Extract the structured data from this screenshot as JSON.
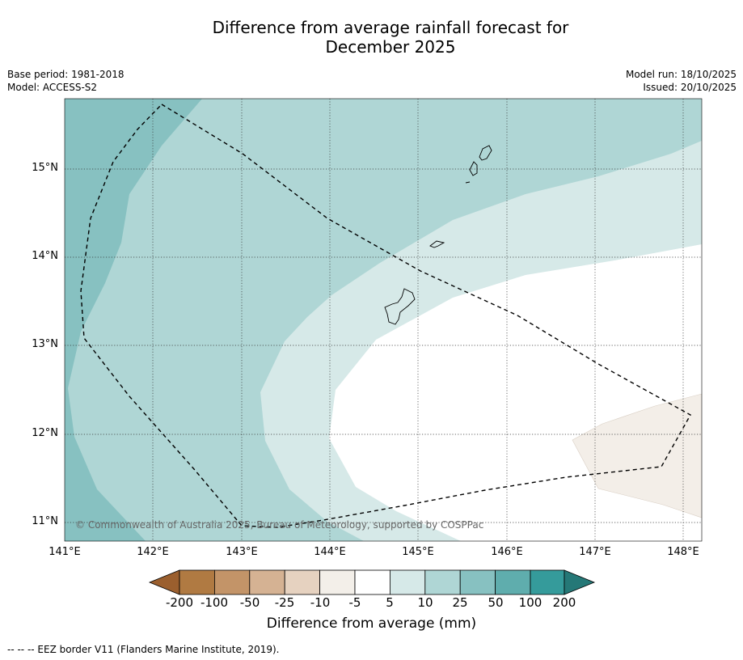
{
  "title_line1": "Difference from average rainfall forecast for",
  "title_line2": "December 2025",
  "meta": {
    "base_period": "Base period: 1981-2018",
    "model": "Model: ACCESS-S2",
    "model_run": "Model run: 18/10/2025",
    "issued": "Issued: 20/10/2025"
  },
  "map": {
    "lat_labels": [
      "15°N",
      "14°N",
      "13°N",
      "12°N",
      "11°N"
    ],
    "lon_labels": [
      "141°E",
      "142°E",
      "143°E",
      "144°E",
      "145°E",
      "146°E",
      "147°E",
      "148°E"
    ],
    "copyright": "© Commonwealth of Australia 2025, Bureau of Meteorology, supported by COSPPac"
  },
  "colorbar": {
    "title": "Difference from average (mm)",
    "ticks": [
      "-200",
      "-100",
      "-50",
      "-25",
      "-10",
      "-5",
      "5",
      "10",
      "25",
      "50",
      "100",
      "200"
    ],
    "colors": [
      "#9b5f2e",
      "#b07a42",
      "#c39468",
      "#d5b293",
      "#e6d2c0",
      "#f3efe9",
      "#ffffff",
      "#d6e9e8",
      "#afd6d5",
      "#87c1c1",
      "#5fadad",
      "#359b9b",
      "#257877"
    ]
  },
  "footnote": "--  --  -- EEZ border V11 (Flanders Marine Institute, 2019)."
}
